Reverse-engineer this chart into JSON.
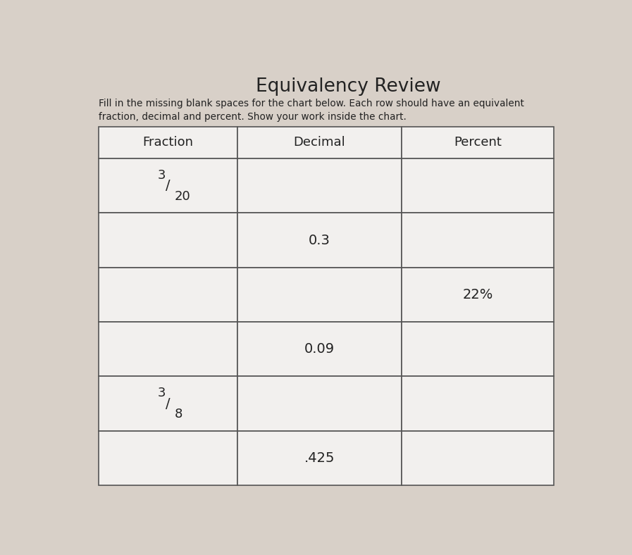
{
  "title": "Equivalency Review",
  "subtitle_line1": "Fill in the missing blank spaces for the chart below. Each row should have an equivalent",
  "subtitle_line2": "fraction, decimal and percent. Show your work inside the chart.",
  "col_headers": [
    "Fraction",
    "Decimal",
    "Percent"
  ],
  "rows": [
    {
      "fraction": "3/20",
      "decimal": "",
      "percent": ""
    },
    {
      "fraction": "",
      "decimal": "0.3",
      "percent": ""
    },
    {
      "fraction": "",
      "decimal": "",
      "percent": "22%"
    },
    {
      "fraction": "",
      "decimal": "0.09",
      "percent": ""
    },
    {
      "fraction": "3/8",
      "decimal": "",
      "percent": ""
    },
    {
      "fraction": "",
      "decimal": ".425",
      "percent": ""
    }
  ],
  "bg_color": "#d8d0c8",
  "cell_bg": "#f2f0ee",
  "line_color": "#555555",
  "text_color": "#222222",
  "header_fontsize": 13,
  "cell_fontsize": 14,
  "title_fontsize": 19
}
